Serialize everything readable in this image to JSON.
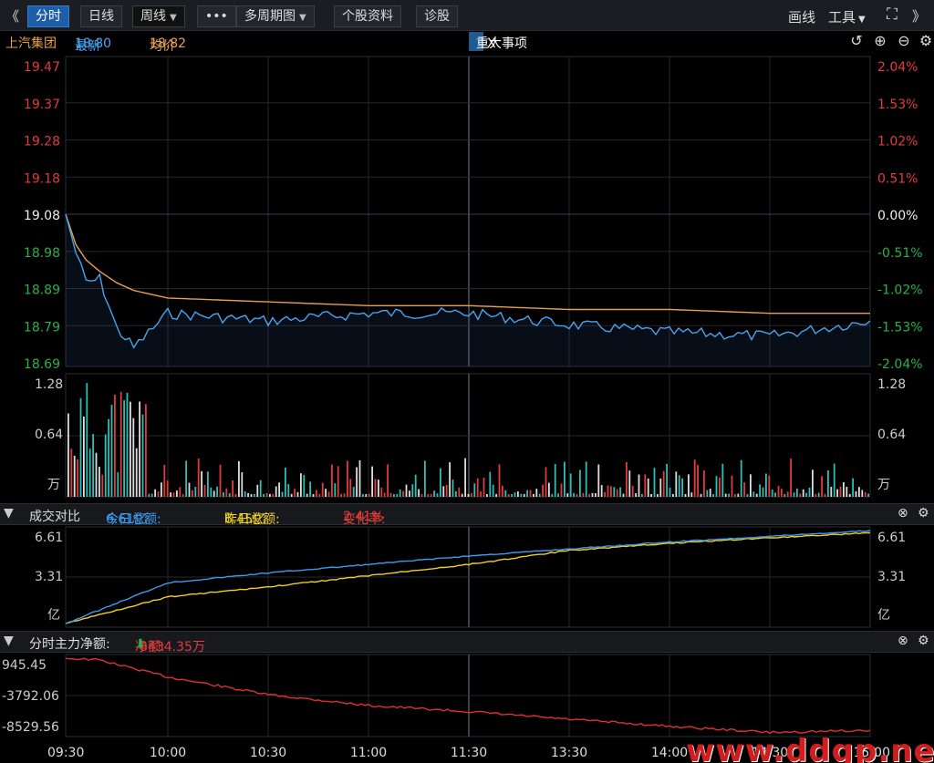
{
  "toolbar": {
    "back_glyph": "《",
    "forward_glyph": "》",
    "tabs": [
      "分时",
      "日线",
      "周线",
      "多周期图",
      "个股资料",
      "诊股"
    ],
    "more_glyph": "•••",
    "draw_label": "画线",
    "tools_label": "工具",
    "fullscreen_glyph": "⛶"
  },
  "info": {
    "stock_name": "上汽集团",
    "latest_label": "最新",
    "latest_value": "18.80",
    "avg_label": "均价",
    "avg_value": "18.82",
    "event_tag": "重大事项",
    "event_close": "X"
  },
  "price_axis": {
    "left_labels": [
      "19.47",
      "19.37",
      "19.28",
      "19.18",
      "19.08",
      "18.98",
      "18.89",
      "18.79",
      "18.69"
    ],
    "right_labels": [
      "2.04%",
      "1.53%",
      "1.02%",
      "0.51%",
      "0.00%",
      "-0.51%",
      "-1.02%",
      "-1.53%",
      "-2.04%"
    ]
  },
  "volume_axis": {
    "top": "1.28",
    "mid": "0.64",
    "unit": "万"
  },
  "compare": {
    "title": "成交对比",
    "today_label": "今日总额:",
    "today_value": "6.61亿",
    "yesterday_label": "昨日总额:",
    "yesterday_value": "6.45亿",
    "change_label": "变化率:",
    "change_value": "2.41%",
    "axis_top": "6.61",
    "axis_mid": "3.31",
    "axis_unit": "亿"
  },
  "capital": {
    "title": "分时主力净额:",
    "net_label": "净额:",
    "net_value": "-8434.35万",
    "axis": [
      "945.45",
      "-3792.06",
      "-8529.56"
    ]
  },
  "time_axis": [
    "09:30",
    "10:00",
    "10:30",
    "11:00",
    "11:30",
    "13:30",
    "14:00",
    "14:30",
    "15:00"
  ],
  "watermark": "www.ddgp.net",
  "colors": {
    "price": "#4aa3ef",
    "avg": "#e6a050",
    "up": "#e23b3b",
    "down": "#27b24a",
    "today": "#3a9cf0",
    "yesterday": "#f0d020",
    "capital": "#e03030"
  },
  "chart_data": [
    {
      "type": "line",
      "title": "",
      "xlabel": "",
      "ylabel": "",
      "x": [
        "09:30",
        "09:33",
        "09:36",
        "09:40",
        "09:45",
        "09:50",
        "10:00",
        "10:30",
        "11:00",
        "11:30",
        "13:30",
        "14:00",
        "14:30",
        "15:00"
      ],
      "series": [
        {
          "name": "最新",
          "values": [
            19.08,
            18.98,
            18.9,
            18.91,
            18.78,
            18.73,
            18.82,
            18.8,
            18.82,
            18.82,
            18.79,
            18.77,
            18.76,
            18.8
          ]
        },
        {
          "name": "均价",
          "values": [
            19.08,
            19.0,
            18.96,
            18.93,
            18.9,
            18.88,
            18.86,
            18.85,
            18.84,
            18.84,
            18.83,
            18.83,
            18.82,
            18.82
          ]
        }
      ],
      "ylim": [
        18.69,
        19.47
      ]
    },
    {
      "type": "line",
      "title": "成交对比",
      "x": [
        "09:30",
        "10:00",
        "10:30",
        "11:00",
        "11:30",
        "13:30",
        "14:00",
        "14:30",
        "15:00"
      ],
      "series": [
        {
          "name": "今日总额",
          "values": [
            0.0,
            2.9,
            3.6,
            4.2,
            4.8,
            5.3,
            5.8,
            6.2,
            6.61
          ]
        },
        {
          "name": "昨日总额",
          "values": [
            0.0,
            1.9,
            2.6,
            3.4,
            4.2,
            5.2,
            5.7,
            6.1,
            6.45
          ]
        }
      ],
      "ylim": [
        0,
        6.61
      ]
    },
    {
      "type": "line",
      "title": "分时主力净额",
      "x": [
        "09:30",
        "09:40",
        "10:00",
        "10:30",
        "11:00",
        "11:30",
        "13:30",
        "14:00",
        "14:30",
        "15:00"
      ],
      "series": [
        {
          "name": "净额",
          "values": [
            945.45,
            700,
            -1500,
            -3792.06,
            -5200,
            -6000,
            -7000,
            -7900,
            -8700,
            -8434.35
          ]
        }
      ],
      "ylim": [
        -8529.56,
        945.45
      ]
    }
  ]
}
